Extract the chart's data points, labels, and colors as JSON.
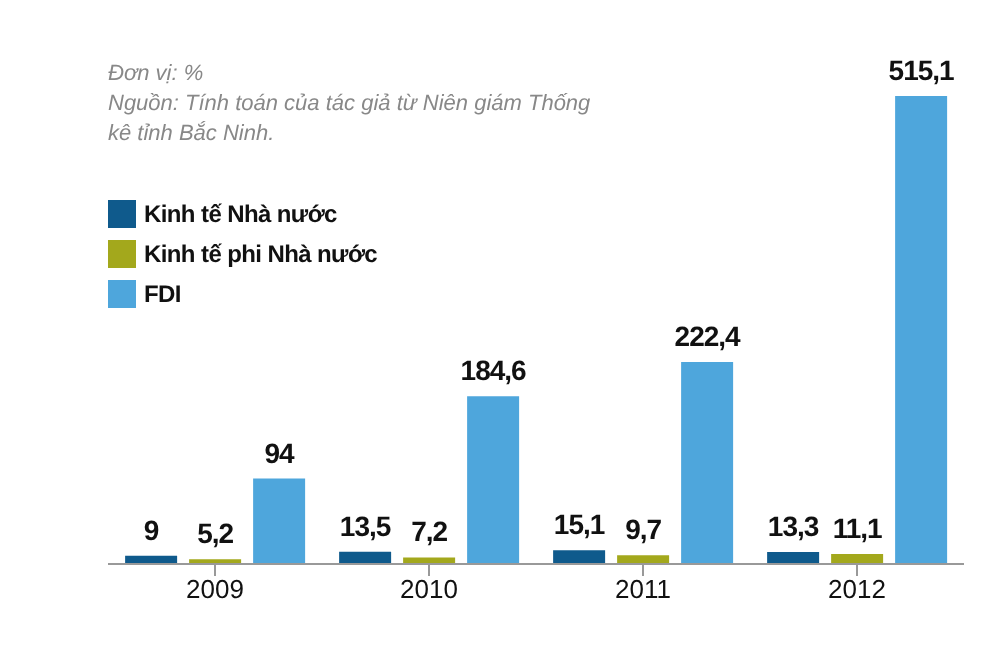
{
  "chart_data": {
    "type": "bar",
    "annotations": [
      "Đơn vị: %",
      "Nguồn: Tính toán của tác giả từ Niên giám Thống kê tỉnh Bắc Ninh."
    ],
    "categories": [
      "2009",
      "2010",
      "2011",
      "2012"
    ],
    "series": [
      {
        "name": "Kinh tế Nhà nước",
        "color": "#0f5a8c",
        "values": [
          9,
          13.5,
          15.1,
          13.3
        ],
        "value_labels": [
          "9",
          "13,5",
          "15,1",
          "13,3"
        ]
      },
      {
        "name": "Kinh tế phi Nhà nước",
        "color": "#a3a81c",
        "values": [
          5.2,
          7.2,
          9.7,
          11.1
        ],
        "value_labels": [
          "5,2",
          "7,2",
          "9,7",
          "11,1"
        ]
      },
      {
        "name": "FDI",
        "color": "#4ea6dc",
        "values": [
          94,
          184.6,
          222.4,
          515.1
        ],
        "value_labels": [
          "94",
          "184,6",
          "222,4",
          "515,1"
        ]
      }
    ],
    "legend": "top left",
    "grid": false
  }
}
